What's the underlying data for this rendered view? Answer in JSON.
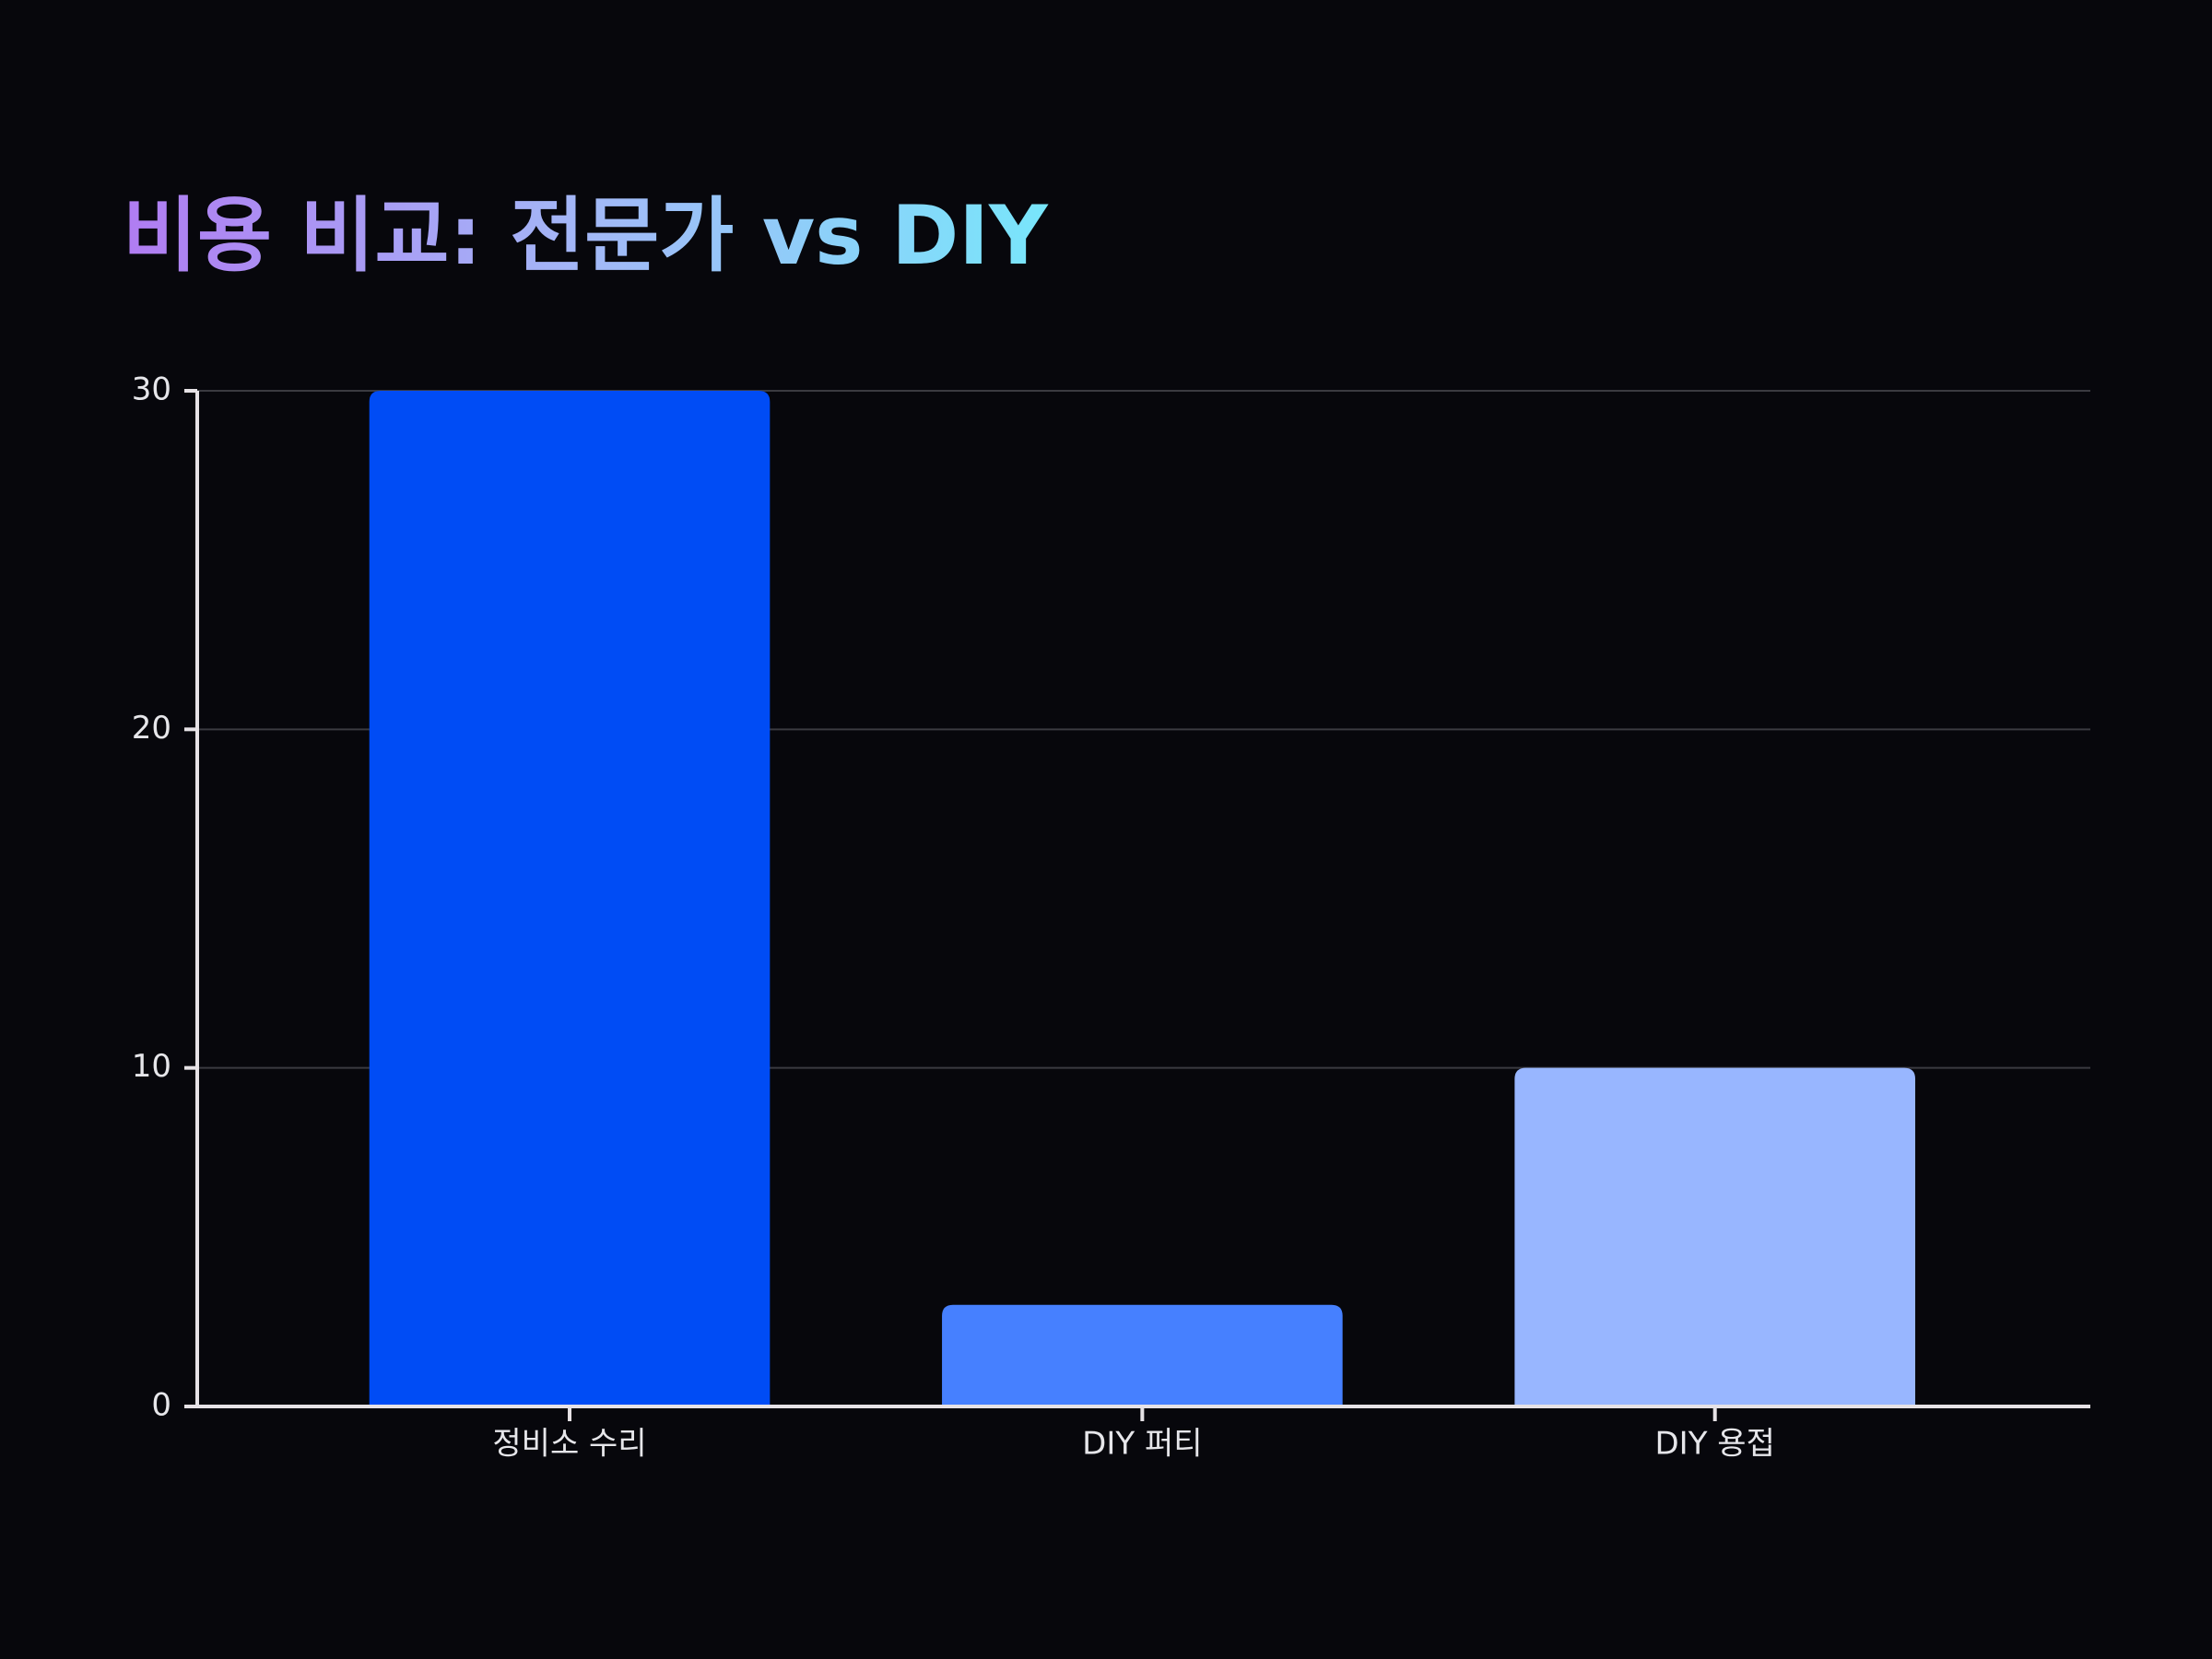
{
  "chart_data": {
    "type": "bar",
    "title": "비용 비교: 전문가 vs DIY",
    "categories": [
      "정비소 수리",
      "DIY 퍼티",
      "DIY 용접"
    ],
    "values": [
      30,
      3,
      10
    ],
    "colors": [
      "#004cf5",
      "#4680ff",
      "#98b6ff"
    ],
    "ylim": [
      0,
      30
    ],
    "yticks": [
      0,
      10,
      20,
      30
    ],
    "grid": true
  }
}
